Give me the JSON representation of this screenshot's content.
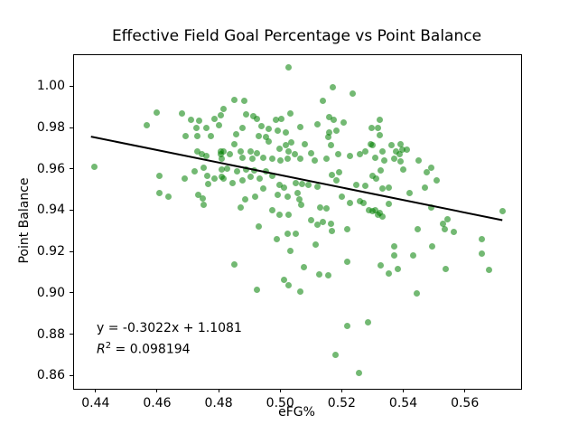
{
  "chart_data": {
    "type": "scatter",
    "title": "Effective Field Goal Percentage vs Point Balance",
    "xlabel": "eFG%",
    "ylabel": "Point Balance",
    "xlim": [
      0.433,
      0.5783
    ],
    "ylim": [
      0.8536,
      1.015
    ],
    "grid": false,
    "legend": null,
    "x_ticks": {
      "values": [
        0.44,
        0.46,
        0.48,
        0.5,
        0.52,
        0.54,
        0.56
      ],
      "labels": [
        "0.44",
        "0.46",
        "0.48",
        "0.50",
        "0.52",
        "0.54",
        "0.56"
      ]
    },
    "y_ticks": {
      "values": [
        0.86,
        0.88,
        0.9,
        0.92,
        0.94,
        0.96,
        0.98,
        1.0
      ],
      "labels": [
        "0.86",
        "0.88",
        "0.90",
        "0.92",
        "0.94",
        "0.96",
        "0.98",
        "1.00"
      ]
    },
    "marker": {
      "color": "#008000",
      "opacity": 0.55,
      "diameter": 7
    },
    "trend_line": {
      "slope": -0.3022,
      "intercept": 1.1081,
      "r_squared": 0.098194,
      "x_start": 0.4385,
      "x_end": 0.5722,
      "y_start": 0.97558,
      "y_end": 0.93518,
      "color": "#000000",
      "width": 2
    },
    "annotation": {
      "line1": "y = -0.3022x + 1.1081",
      "r2_prefix": "R",
      "r2_sup": "2",
      "r2_rest": " = 0.098194"
    },
    "points": [
      [
        0.4599,
        0.9873
      ],
      [
        0.4567,
        0.9812
      ],
      [
        0.468,
        0.987
      ],
      [
        0.4709,
        0.9836
      ],
      [
        0.4738,
        0.9832
      ],
      [
        0.4728,
        0.9796
      ],
      [
        0.4761,
        0.98
      ],
      [
        0.4785,
        0.9841
      ],
      [
        0.4806,
        0.9858
      ],
      [
        0.48,
        0.9812
      ],
      [
        0.4775,
        0.9759
      ],
      [
        0.4732,
        0.9759
      ],
      [
        0.4692,
        0.9759
      ],
      [
        0.4808,
        0.9686
      ],
      [
        0.4731,
        0.9683
      ],
      [
        0.4746,
        0.9669
      ],
      [
        0.476,
        0.9661
      ],
      [
        0.4806,
        0.9669
      ],
      [
        0.4809,
        0.9647
      ],
      [
        0.5026,
        1.0089
      ],
      [
        0.517,
        0.9993
      ],
      [
        0.5235,
        0.9965
      ],
      [
        0.514,
        0.9928
      ],
      [
        0.4851,
        0.9934
      ],
      [
        0.4884,
        0.9927
      ],
      [
        0.4817,
        0.9888
      ],
      [
        0.489,
        0.9864
      ],
      [
        0.4912,
        0.9856
      ],
      [
        0.4923,
        0.9841
      ],
      [
        0.4985,
        0.9836
      ],
      [
        0.5003,
        0.9841
      ],
      [
        0.5034,
        0.9867
      ],
      [
        0.516,
        0.9851
      ],
      [
        0.5174,
        0.9836
      ],
      [
        0.5207,
        0.9822
      ],
      [
        0.5122,
        0.9814
      ],
      [
        0.5065,
        0.9803
      ],
      [
        0.4878,
        0.98
      ],
      [
        0.4939,
        0.9807
      ],
      [
        0.4964,
        0.9793
      ],
      [
        0.4993,
        0.9786
      ],
      [
        0.5018,
        0.9778
      ],
      [
        0.4858,
        0.9768
      ],
      [
        0.493,
        0.9759
      ],
      [
        0.4954,
        0.9753
      ],
      [
        0.516,
        0.9778
      ],
      [
        0.5184,
        0.9786
      ],
      [
        0.5155,
        0.9756
      ],
      [
        0.5297,
        0.98
      ],
      [
        0.5294,
        0.972
      ],
      [
        0.4851,
        0.972
      ],
      [
        0.4871,
        0.9683
      ],
      [
        0.4905,
        0.9683
      ],
      [
        0.4925,
        0.9676
      ],
      [
        0.4964,
        0.9734
      ],
      [
        0.4998,
        0.9698
      ],
      [
        0.5018,
        0.9713
      ],
      [
        0.5037,
        0.9727
      ],
      [
        0.5081,
        0.972
      ],
      [
        0.5028,
        0.9686
      ],
      [
        0.5047,
        0.9669
      ],
      [
        0.5101,
        0.9676
      ],
      [
        0.5165,
        0.9716
      ],
      [
        0.4817,
        0.9686
      ],
      [
        0.4835,
        0.9669
      ],
      [
        0.4876,
        0.9654
      ],
      [
        0.491,
        0.9647
      ],
      [
        0.4944,
        0.9654
      ],
      [
        0.4974,
        0.9647
      ],
      [
        0.5001,
        0.9639
      ],
      [
        0.5023,
        0.9647
      ],
      [
        0.5064,
        0.9647
      ],
      [
        0.5111,
        0.9639
      ],
      [
        0.515,
        0.9647
      ],
      [
        0.5189,
        0.9669
      ],
      [
        0.5228,
        0.9661
      ],
      [
        0.5258,
        0.9669
      ],
      [
        0.5277,
        0.9683
      ],
      [
        0.5323,
        0.9836
      ],
      [
        0.5318,
        0.98
      ],
      [
        0.5323,
        0.9764
      ],
      [
        0.5362,
        0.9713
      ],
      [
        0.5392,
        0.972
      ],
      [
        0.5333,
        0.9683
      ],
      [
        0.5377,
        0.9686
      ],
      [
        0.5396,
        0.9695
      ],
      [
        0.5411,
        0.9691
      ],
      [
        0.5387,
        0.9669
      ],
      [
        0.5372,
        0.9647
      ],
      [
        0.5338,
        0.9639
      ],
      [
        0.5308,
        0.9654
      ],
      [
        0.5299,
        0.9713
      ],
      [
        0.5451,
        0.9639
      ],
      [
        0.5392,
        0.9637
      ],
      [
        0.4397,
        0.9608
      ],
      [
        0.4606,
        0.9568
      ],
      [
        0.4689,
        0.9551
      ],
      [
        0.4721,
        0.9586
      ],
      [
        0.475,
        0.9604
      ],
      [
        0.4763,
        0.9565
      ],
      [
        0.4785,
        0.9554
      ],
      [
        0.4767,
        0.9528
      ],
      [
        0.4809,
        0.9597
      ],
      [
        0.4809,
        0.9561
      ],
      [
        0.4606,
        0.9484
      ],
      [
        0.4638,
        0.9466
      ],
      [
        0.4734,
        0.9473
      ],
      [
        0.4747,
        0.9456
      ],
      [
        0.475,
        0.9425
      ],
      [
        0.4829,
        0.96
      ],
      [
        0.4861,
        0.959
      ],
      [
        0.489,
        0.9597
      ],
      [
        0.4915,
        0.9594
      ],
      [
        0.4905,
        0.9561
      ],
      [
        0.4932,
        0.9554
      ],
      [
        0.4954,
        0.959
      ],
      [
        0.4974,
        0.9568
      ],
      [
        0.4878,
        0.9546
      ],
      [
        0.4846,
        0.9532
      ],
      [
        0.4817,
        0.9551
      ],
      [
        0.4998,
        0.9521
      ],
      [
        0.5013,
        0.951
      ],
      [
        0.5052,
        0.9532
      ],
      [
        0.5072,
        0.9527
      ],
      [
        0.5091,
        0.9524
      ],
      [
        0.512,
        0.9513
      ],
      [
        0.5169,
        0.9571
      ],
      [
        0.5191,
        0.9583
      ],
      [
        0.5184,
        0.9546
      ],
      [
        0.5248,
        0.9524
      ],
      [
        0.5277,
        0.9517
      ],
      [
        0.4944,
        0.9503
      ],
      [
        0.4993,
        0.9473
      ],
      [
        0.5023,
        0.9466
      ],
      [
        0.5057,
        0.9481
      ],
      [
        0.5062,
        0.9451
      ],
      [
        0.5067,
        0.9425
      ],
      [
        0.5199,
        0.9466
      ],
      [
        0.5228,
        0.9437
      ],
      [
        0.5258,
        0.9444
      ],
      [
        0.5272,
        0.9437
      ],
      [
        0.492,
        0.9466
      ],
      [
        0.4885,
        0.9451
      ],
      [
        0.4871,
        0.9415
      ],
      [
        0.4974,
        0.9401
      ],
      [
        0.4998,
        0.9379
      ],
      [
        0.5028,
        0.9376
      ],
      [
        0.513,
        0.9415
      ],
      [
        0.515,
        0.9408
      ],
      [
        0.5287,
        0.9401
      ],
      [
        0.5101,
        0.935
      ],
      [
        0.512,
        0.9328
      ],
      [
        0.514,
        0.9342
      ],
      [
        0.493,
        0.932
      ],
      [
        0.5165,
        0.9335
      ],
      [
        0.5169,
        0.9298
      ],
      [
        0.5219,
        0.9306
      ],
      [
        0.4988,
        0.9262
      ],
      [
        0.5023,
        0.9284
      ],
      [
        0.5052,
        0.9288
      ],
      [
        0.5116,
        0.9233
      ],
      [
        0.5032,
        0.9204
      ],
      [
        0.4851,
        0.9138
      ],
      [
        0.5076,
        0.9123
      ],
      [
        0.5219,
        0.9152
      ],
      [
        0.5128,
        0.909
      ],
      [
        0.5155,
        0.9087
      ],
      [
        0.5328,
        0.9594
      ],
      [
        0.5401,
        0.9597
      ],
      [
        0.5475,
        0.9583
      ],
      [
        0.549,
        0.9604
      ],
      [
        0.5509,
        0.9546
      ],
      [
        0.547,
        0.951
      ],
      [
        0.5352,
        0.951
      ],
      [
        0.5333,
        0.9503
      ],
      [
        0.5299,
        0.9568
      ],
      [
        0.5313,
        0.9554
      ],
      [
        0.5421,
        0.9481
      ],
      [
        0.5352,
        0.943
      ],
      [
        0.5308,
        0.9401
      ],
      [
        0.5323,
        0.9386
      ],
      [
        0.5318,
        0.9379
      ],
      [
        0.5333,
        0.9371
      ],
      [
        0.5299,
        0.9396
      ],
      [
        0.5491,
        0.9415
      ],
      [
        0.5543,
        0.9357
      ],
      [
        0.5529,
        0.9335
      ],
      [
        0.5536,
        0.9306
      ],
      [
        0.5563,
        0.9294
      ],
      [
        0.5446,
        0.9306
      ],
      [
        0.5722,
        0.9396
      ],
      [
        0.5656,
        0.9262
      ],
      [
        0.5656,
        0.9189
      ],
      [
        0.5372,
        0.9226
      ],
      [
        0.5372,
        0.9182
      ],
      [
        0.5431,
        0.9182
      ],
      [
        0.5494,
        0.9226
      ],
      [
        0.5328,
        0.9131
      ],
      [
        0.5382,
        0.9116
      ],
      [
        0.5352,
        0.9094
      ],
      [
        0.5538,
        0.9116
      ],
      [
        0.568,
        0.9109
      ],
      [
        0.4925,
        0.9016
      ],
      [
        0.5013,
        0.9062
      ],
      [
        0.5028,
        0.9037
      ],
      [
        0.5064,
        0.9008
      ],
      [
        0.5217,
        0.884
      ],
      [
        0.5285,
        0.8858
      ],
      [
        0.5181,
        0.8702
      ],
      [
        0.5256,
        0.8614
      ],
      [
        0.5444,
        0.8998
      ]
    ]
  }
}
